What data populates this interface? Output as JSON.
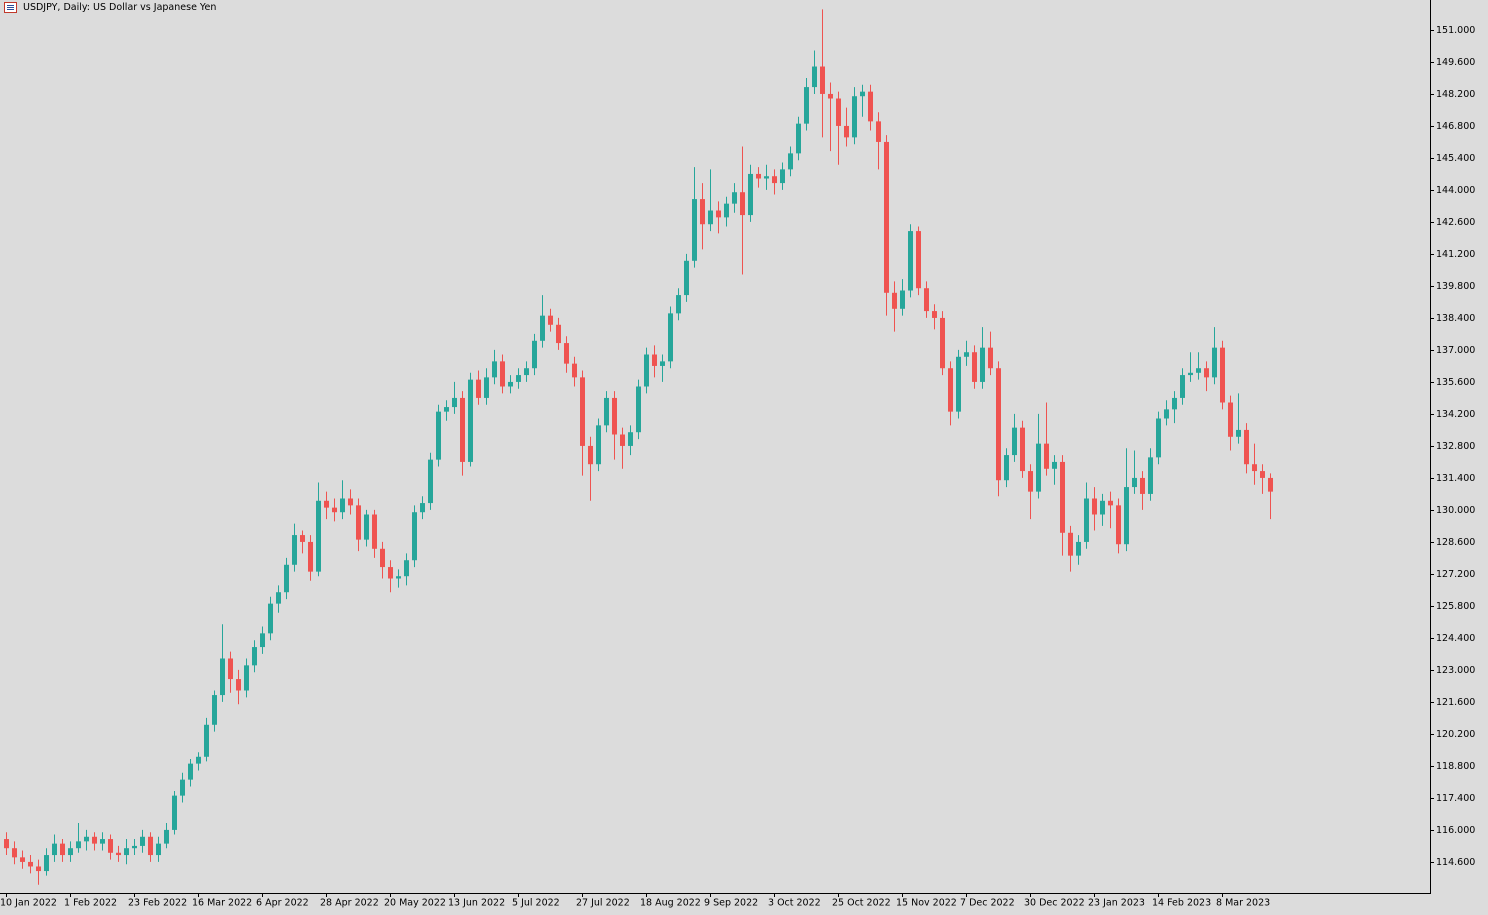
{
  "chart_data": {
    "type": "candlestick",
    "title": "USDJPY, Daily:  US Dollar vs Japanese Yen",
    "up_color": "#26a69a",
    "down_color": "#ef5350",
    "background": "#dcdcdc",
    "categories": [
      "10 Jan 2022",
      null,
      null,
      null,
      null,
      null,
      null,
      null,
      "1 Feb 2022",
      null,
      null,
      null,
      null,
      null,
      null,
      null,
      "23 Feb 2022",
      null,
      null,
      null,
      null,
      null,
      null,
      null,
      "16 Mar 2022",
      null,
      null,
      null,
      null,
      null,
      null,
      null,
      "6 Apr 2022",
      null,
      null,
      null,
      null,
      null,
      null,
      null,
      "28 Apr 2022",
      null,
      null,
      null,
      null,
      null,
      null,
      null,
      "20 May 2022",
      null,
      null,
      null,
      null,
      null,
      null,
      null,
      "13 Jun 2022",
      null,
      null,
      null,
      null,
      null,
      null,
      null,
      "5 Jul 2022",
      null,
      null,
      null,
      null,
      null,
      null,
      null,
      "27 Jul 2022",
      null,
      null,
      null,
      null,
      null,
      null,
      null,
      "18 Aug 2022",
      null,
      null,
      null,
      null,
      null,
      null,
      null,
      "9 Sep 2022",
      null,
      null,
      null,
      null,
      null,
      null,
      null,
      "3 Oct 2022",
      null,
      null,
      null,
      null,
      null,
      null,
      null,
      "25 Oct 2022",
      null,
      null,
      null,
      null,
      null,
      null,
      null,
      "15 Nov 2022",
      null,
      null,
      null,
      null,
      null,
      null,
      null,
      "7 Dec 2022",
      null,
      null,
      null,
      null,
      null,
      null,
      null,
      "30 Dec 2022",
      null,
      null,
      null,
      null,
      null,
      null,
      null,
      "23 Jan 2023",
      null,
      null,
      null,
      null,
      null,
      null,
      null,
      "14 Feb 2023",
      null,
      null,
      null,
      null,
      null,
      null,
      null,
      "8 Mar 2023",
      null,
      null,
      null,
      null,
      null,
      null
    ],
    "ohlc": [
      [
        115.6,
        115.9,
        114.9,
        115.2
      ],
      [
        115.2,
        115.5,
        114.5,
        114.8
      ],
      [
        114.8,
        115.1,
        114.3,
        114.6
      ],
      [
        114.6,
        114.9,
        114.1,
        114.4
      ],
      [
        114.4,
        114.7,
        113.6,
        114.2
      ],
      [
        114.2,
        115.2,
        114.0,
        114.9
      ],
      [
        114.9,
        115.8,
        114.6,
        115.4
      ],
      [
        115.4,
        115.6,
        114.6,
        114.9
      ],
      [
        114.9,
        115.5,
        114.6,
        115.2
      ],
      [
        115.2,
        116.3,
        115.0,
        115.5
      ],
      [
        115.5,
        116.0,
        115.1,
        115.7
      ],
      [
        115.7,
        115.9,
        115.1,
        115.4
      ],
      [
        115.4,
        115.9,
        115.1,
        115.6
      ],
      [
        115.6,
        115.8,
        114.7,
        115.0
      ],
      [
        115.0,
        115.3,
        114.6,
        114.9
      ],
      [
        114.9,
        115.6,
        114.5,
        115.2
      ],
      [
        115.2,
        115.6,
        114.9,
        115.3
      ],
      [
        115.3,
        116.0,
        115.0,
        115.7
      ],
      [
        115.7,
        115.9,
        114.6,
        114.9
      ],
      [
        114.9,
        115.7,
        114.6,
        115.4
      ],
      [
        115.4,
        116.3,
        115.2,
        116.0
      ],
      [
        116.0,
        117.7,
        115.8,
        117.5
      ],
      [
        117.5,
        118.5,
        117.2,
        118.2
      ],
      [
        118.2,
        119.1,
        117.9,
        118.9
      ],
      [
        118.9,
        119.4,
        118.6,
        119.2
      ],
      [
        119.2,
        120.9,
        119.0,
        120.6
      ],
      [
        120.6,
        122.1,
        120.3,
        121.9
      ],
      [
        121.9,
        125.0,
        121.6,
        123.5
      ],
      [
        123.5,
        123.8,
        122.0,
        122.6
      ],
      [
        122.6,
        123.0,
        121.5,
        122.1
      ],
      [
        122.1,
        123.5,
        121.8,
        123.2
      ],
      [
        123.2,
        124.3,
        122.9,
        124.0
      ],
      [
        124.0,
        124.9,
        123.7,
        124.6
      ],
      [
        124.6,
        126.2,
        124.3,
        125.9
      ],
      [
        125.9,
        126.7,
        125.5,
        126.4
      ],
      [
        126.4,
        127.9,
        126.1,
        127.6
      ],
      [
        127.6,
        129.4,
        127.3,
        128.9
      ],
      [
        128.9,
        129.1,
        128.1,
        128.6
      ],
      [
        128.6,
        128.9,
        126.9,
        127.3
      ],
      [
        127.3,
        131.2,
        127.1,
        130.4
      ],
      [
        130.4,
        130.8,
        129.6,
        130.1
      ],
      [
        130.1,
        130.5,
        129.5,
        129.9
      ],
      [
        129.9,
        131.3,
        129.6,
        130.5
      ],
      [
        130.5,
        130.9,
        129.8,
        130.2
      ],
      [
        130.2,
        130.5,
        128.2,
        128.7
      ],
      [
        128.7,
        130.0,
        128.4,
        129.8
      ],
      [
        129.8,
        130.0,
        127.9,
        128.3
      ],
      [
        128.3,
        128.6,
        127.0,
        127.5
      ],
      [
        127.5,
        127.8,
        126.4,
        127.0
      ],
      [
        127.0,
        127.4,
        126.6,
        127.1
      ],
      [
        127.1,
        128.1,
        126.7,
        127.8
      ],
      [
        127.8,
        130.2,
        127.5,
        129.9
      ],
      [
        129.9,
        130.6,
        129.6,
        130.3
      ],
      [
        130.3,
        132.5,
        130.0,
        132.2
      ],
      [
        132.2,
        134.6,
        131.9,
        134.3
      ],
      [
        134.3,
        134.8,
        133.9,
        134.5
      ],
      [
        134.5,
        135.6,
        134.2,
        134.9
      ],
      [
        134.9,
        135.2,
        131.5,
        132.1
      ],
      [
        132.1,
        136.0,
        131.9,
        135.7
      ],
      [
        135.7,
        136.1,
        134.6,
        134.9
      ],
      [
        134.9,
        136.2,
        134.6,
        135.8
      ],
      [
        135.8,
        137.0,
        135.5,
        136.5
      ],
      [
        136.5,
        136.8,
        135.1,
        135.4
      ],
      [
        135.4,
        135.9,
        135.1,
        135.6
      ],
      [
        135.6,
        136.2,
        135.3,
        135.9
      ],
      [
        135.9,
        136.5,
        135.6,
        136.2
      ],
      [
        136.2,
        137.7,
        135.9,
        137.4
      ],
      [
        137.4,
        139.4,
        137.1,
        138.5
      ],
      [
        138.5,
        138.8,
        137.8,
        138.1
      ],
      [
        138.1,
        138.4,
        137.0,
        137.3
      ],
      [
        137.3,
        137.6,
        136.0,
        136.4
      ],
      [
        136.4,
        136.7,
        135.4,
        135.8
      ],
      [
        135.8,
        136.1,
        131.5,
        132.8
      ],
      [
        132.8,
        133.2,
        130.4,
        132.0
      ],
      [
        132.0,
        134.0,
        131.7,
        133.7
      ],
      [
        133.7,
        135.2,
        133.4,
        134.9
      ],
      [
        134.9,
        135.2,
        132.2,
        133.3
      ],
      [
        133.3,
        133.6,
        131.8,
        132.8
      ],
      [
        132.8,
        133.7,
        132.4,
        133.4
      ],
      [
        133.4,
        135.7,
        133.1,
        135.4
      ],
      [
        135.4,
        137.1,
        135.1,
        136.8
      ],
      [
        136.8,
        137.2,
        135.8,
        136.3
      ],
      [
        136.3,
        136.8,
        135.6,
        136.5
      ],
      [
        136.5,
        138.9,
        136.2,
        138.6
      ],
      [
        138.6,
        139.7,
        138.3,
        139.4
      ],
      [
        139.4,
        141.2,
        139.1,
        140.9
      ],
      [
        140.9,
        145.0,
        140.6,
        143.6
      ],
      [
        143.6,
        144.3,
        141.4,
        142.5
      ],
      [
        142.5,
        144.9,
        142.2,
        143.1
      ],
      [
        143.1,
        143.5,
        142.1,
        142.8
      ],
      [
        142.8,
        143.7,
        142.4,
        143.4
      ],
      [
        143.4,
        144.3,
        143.0,
        143.9
      ],
      [
        143.9,
        145.9,
        140.3,
        142.9
      ],
      [
        142.9,
        145.1,
        142.6,
        144.7
      ],
      [
        144.7,
        145.0,
        144.1,
        144.5
      ],
      [
        144.5,
        145.1,
        144.0,
        144.6
      ],
      [
        144.6,
        144.9,
        143.8,
        144.3
      ],
      [
        144.3,
        145.2,
        144.0,
        144.9
      ],
      [
        144.9,
        145.9,
        144.6,
        145.6
      ],
      [
        145.6,
        147.2,
        145.3,
        146.9
      ],
      [
        146.9,
        148.9,
        146.6,
        148.5
      ],
      [
        148.5,
        150.1,
        148.2,
        149.4
      ],
      [
        149.4,
        151.9,
        146.3,
        148.2
      ],
      [
        148.2,
        148.7,
        145.7,
        148.0
      ],
      [
        148.0,
        148.3,
        145.1,
        146.8
      ],
      [
        146.8,
        147.6,
        145.9,
        146.3
      ],
      [
        146.3,
        148.5,
        146.0,
        148.1
      ],
      [
        148.1,
        148.6,
        147.2,
        148.3
      ],
      [
        148.3,
        148.6,
        146.6,
        147.0
      ],
      [
        147.0,
        147.4,
        144.9,
        146.1
      ],
      [
        146.1,
        146.4,
        138.5,
        139.5
      ],
      [
        139.5,
        140.0,
        137.8,
        138.8
      ],
      [
        138.8,
        140.1,
        138.5,
        139.6
      ],
      [
        139.6,
        142.5,
        139.3,
        142.2
      ],
      [
        142.2,
        142.4,
        139.4,
        139.7
      ],
      [
        139.7,
        140.0,
        138.4,
        138.7
      ],
      [
        138.7,
        139.0,
        137.9,
        138.4
      ],
      [
        138.4,
        138.7,
        135.9,
        136.2
      ],
      [
        136.2,
        136.5,
        133.7,
        134.3
      ],
      [
        134.3,
        137.0,
        134.0,
        136.7
      ],
      [
        136.7,
        137.4,
        136.3,
        136.9
      ],
      [
        136.9,
        137.2,
        135.3,
        135.6
      ],
      [
        135.6,
        138.0,
        135.3,
        137.1
      ],
      [
        137.1,
        137.8,
        135.9,
        136.2
      ],
      [
        136.2,
        136.5,
        130.6,
        131.3
      ],
      [
        131.3,
        132.7,
        131.0,
        132.4
      ],
      [
        132.4,
        134.2,
        132.1,
        133.6
      ],
      [
        133.6,
        133.9,
        131.4,
        131.7
      ],
      [
        131.7,
        132.0,
        129.6,
        130.8
      ],
      [
        130.8,
        134.2,
        130.5,
        132.9
      ],
      [
        132.9,
        134.7,
        131.5,
        131.8
      ],
      [
        131.8,
        132.4,
        131.1,
        132.1
      ],
      [
        132.1,
        132.4,
        128.0,
        129.0
      ],
      [
        129.0,
        129.3,
        127.3,
        128.0
      ],
      [
        128.0,
        128.9,
        127.6,
        128.6
      ],
      [
        128.6,
        131.2,
        128.3,
        130.5
      ],
      [
        130.5,
        131.0,
        129.1,
        129.8
      ],
      [
        129.8,
        130.7,
        129.3,
        130.4
      ],
      [
        130.4,
        130.8,
        129.2,
        130.2
      ],
      [
        130.2,
        130.5,
        128.1,
        128.5
      ],
      [
        128.5,
        132.7,
        128.2,
        131.0
      ],
      [
        131.0,
        132.6,
        130.7,
        131.4
      ],
      [
        131.4,
        131.7,
        130.0,
        130.7
      ],
      [
        130.7,
        132.7,
        130.4,
        132.3
      ],
      [
        132.3,
        134.3,
        132.0,
        134.0
      ],
      [
        134.0,
        134.8,
        133.7,
        134.4
      ],
      [
        134.4,
        135.2,
        133.8,
        134.9
      ],
      [
        134.9,
        136.2,
        134.6,
        135.9
      ],
      [
        135.9,
        136.9,
        135.6,
        136.0
      ],
      [
        136.0,
        136.9,
        135.7,
        136.2
      ],
      [
        136.2,
        136.5,
        135.2,
        135.8
      ],
      [
        135.8,
        138.0,
        135.5,
        137.1
      ],
      [
        137.1,
        137.4,
        134.4,
        134.7
      ],
      [
        134.7,
        135.0,
        132.6,
        133.2
      ],
      [
        133.2,
        135.1,
        132.9,
        133.5
      ],
      [
        133.5,
        133.8,
        131.6,
        132.0
      ],
      [
        132.0,
        132.9,
        131.1,
        131.7
      ],
      [
        131.7,
        132.0,
        130.7,
        131.4
      ],
      [
        131.4,
        131.6,
        129.6,
        130.8
      ]
    ],
    "ylim": [
      113.24,
      152.31
    ],
    "yticks": [
      {
        "value": 114.6,
        "label": "114.600"
      },
      {
        "value": 116.0,
        "label": "116.000"
      },
      {
        "value": 117.4,
        "label": "117.400"
      },
      {
        "value": 118.8,
        "label": "118.800"
      },
      {
        "value": 120.2,
        "label": "120.200"
      },
      {
        "value": 121.6,
        "label": "121.600"
      },
      {
        "value": 123.0,
        "label": "123.000"
      },
      {
        "value": 124.4,
        "label": "124.400"
      },
      {
        "value": 125.8,
        "label": "125.800"
      },
      {
        "value": 127.2,
        "label": "127.200"
      },
      {
        "value": 128.6,
        "label": "128.600"
      },
      {
        "value": 130.0,
        "label": "130.000"
      },
      {
        "value": 131.4,
        "label": "131.400"
      },
      {
        "value": 132.8,
        "label": "132.800"
      },
      {
        "value": 134.2,
        "label": "134.200"
      },
      {
        "value": 135.6,
        "label": "135.600"
      },
      {
        "value": 137.0,
        "label": "137.000"
      },
      {
        "value": 138.4,
        "label": "138.400"
      },
      {
        "value": 139.8,
        "label": "139.800"
      },
      {
        "value": 141.2,
        "label": "141.200"
      },
      {
        "value": 142.6,
        "label": "142.600"
      },
      {
        "value": 144.0,
        "label": "144.000"
      },
      {
        "value": 145.4,
        "label": "145.400"
      },
      {
        "value": 146.8,
        "label": "146.800"
      },
      {
        "value": 148.2,
        "label": "148.200"
      },
      {
        "value": 149.6,
        "label": "149.600"
      },
      {
        "value": 151.0,
        "label": "151.000"
      }
    ]
  }
}
